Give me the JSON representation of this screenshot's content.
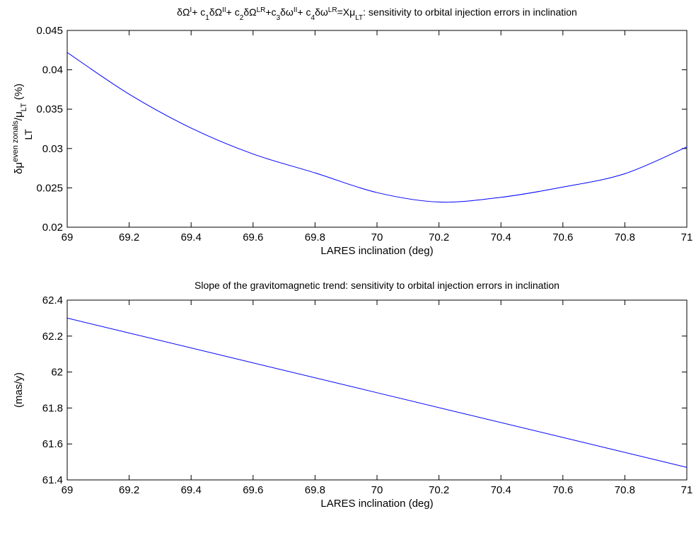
{
  "chart_data": [
    {
      "type": "line",
      "title_html": "δΩ<tspan baseline-shift='super' font-size='10'>I</tspan>+ c<tspan baseline-shift='sub' font-size='10'>1</tspan>δΩ<tspan baseline-shift='super' font-size='10'>II</tspan>+ c<tspan baseline-shift='sub' font-size='10'>2</tspan>δΩ<tspan baseline-shift='super' font-size='10'>LR</tspan>+c<tspan baseline-shift='sub' font-size='10'>3</tspan>δω<tspan baseline-shift='super' font-size='10'>II</tspan>+ c<tspan baseline-shift='sub' font-size='10'>4</tspan>δω<tspan baseline-shift='super' font-size='10'>LR</tspan>=Xμ<tspan baseline-shift='sub' font-size='10'>LT</tspan>: sensitivity to orbital injection errors in inclination",
      "xlabel": "LARES inclination (deg)",
      "ylabel_html": "δμ<tspan baseline-shift='super' font-size='11'>even zonals</tspan>/μ<tspan baseline-shift='sub' font-size='11'>LT</tspan> (%)",
      "ylabel_under": "LT",
      "xlim": [
        69,
        71
      ],
      "ylim": [
        0.02,
        0.045
      ],
      "xticks": [
        "69",
        "69.2",
        "69.4",
        "69.6",
        "69.8",
        "70",
        "70.2",
        "70.4",
        "70.6",
        "70.8",
        "71"
      ],
      "yticks": [
        "0.02",
        "0.025",
        "0.03",
        "0.035",
        "0.04",
        "0.045"
      ],
      "series": [
        {
          "color": "#0000ff",
          "x": [
            69.0,
            69.2,
            69.4,
            69.6,
            69.8,
            70.0,
            70.2,
            70.4,
            70.6,
            70.8,
            71.0
          ],
          "y": [
            0.0422,
            0.0369,
            0.0326,
            0.0293,
            0.0269,
            0.0244,
            0.0232,
            0.0238,
            0.0251,
            0.0268,
            0.0302
          ]
        }
      ]
    },
    {
      "type": "line",
      "title": "Slope of the gravitomagnetic trend: sensitivity to orbital injection errors in inclination",
      "xlabel": "LARES inclination (deg)",
      "ylabel": "(mas/y)",
      "xlim": [
        69,
        71
      ],
      "ylim": [
        61.4,
        62.4
      ],
      "xticks": [
        "69",
        "69.2",
        "69.4",
        "69.6",
        "69.8",
        "70",
        "70.2",
        "70.4",
        "70.6",
        "70.8",
        "71"
      ],
      "yticks": [
        "61.4",
        "61.6",
        "61.8",
        "62",
        "62.2",
        "62.4"
      ],
      "series": [
        {
          "color": "#0000ff",
          "x": [
            69.0,
            71.0
          ],
          "y": [
            62.3,
            61.47
          ]
        }
      ]
    }
  ]
}
